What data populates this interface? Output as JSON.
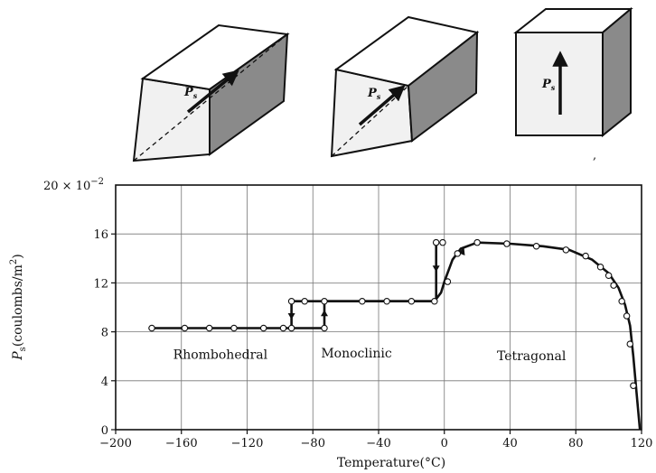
{
  "chart_data": {
    "type": "line",
    "xlabel": "Temperature(°C)",
    "ylabel_main": "P",
    "ylabel_sub": "s",
    "ylabel_rest": "(coulombs/m",
    "ylabel_sup": "2",
    "ylabel_close": ")",
    "y_scale_label": "20 × 10",
    "y_scale_exp": "−2",
    "xlim": [
      -200,
      120
    ],
    "ylim": [
      0,
      20
    ],
    "grid": true,
    "x_ticks": [
      -200,
      -160,
      -120,
      -80,
      -40,
      0,
      40,
      80,
      120
    ],
    "x_tick_labels": [
      "−200",
      "−160",
      "−120",
      "−80",
      "−40",
      "0",
      "40",
      "80",
      "120"
    ],
    "y_ticks": [
      0,
      4,
      8,
      12,
      16
    ],
    "y_tick_labels": [
      "0",
      "4",
      "8",
      "12",
      "16"
    ],
    "phase_labels": [
      {
        "text": "Rhombohedral",
        "x": -165,
        "y": 5.8
      },
      {
        "text": "Monoclinic",
        "x": -75,
        "y": 5.9
      },
      {
        "text": "Tetragonal",
        "x": 32,
        "y": 5.7
      }
    ],
    "curve": [
      [
        -180,
        8.3
      ],
      [
        -73,
        8.3
      ],
      [
        -73,
        10.5
      ],
      [
        -6,
        10.5
      ],
      [
        -2,
        11.2
      ],
      [
        0,
        12.1
      ],
      [
        5,
        13.9
      ],
      [
        10,
        14.8
      ],
      [
        20,
        15.3
      ],
      [
        40,
        15.2
      ],
      [
        60,
        15.0
      ],
      [
        76,
        14.7
      ],
      [
        90,
        13.9
      ],
      [
        100,
        12.8
      ],
      [
        106,
        11.6
      ],
      [
        110,
        10.2
      ],
      [
        113,
        8.5
      ],
      [
        115,
        6.0
      ],
      [
        117,
        3.0
      ],
      [
        119,
        0
      ]
    ],
    "cooling_branch": [
      [
        -5,
        15.3
      ],
      [
        -5,
        10.5
      ],
      [
        -93,
        10.5
      ],
      [
        -93,
        8.3
      ]
    ],
    "points": [
      [
        -178,
        8.3
      ],
      [
        -158,
        8.3
      ],
      [
        -143,
        8.3
      ],
      [
        -128,
        8.3
      ],
      [
        -110,
        8.3
      ],
      [
        -98,
        8.3
      ],
      [
        -93,
        8.3
      ],
      [
        -73,
        8.3
      ],
      [
        -93,
        10.5
      ],
      [
        -85,
        10.5
      ],
      [
        -73,
        10.5
      ],
      [
        -50,
        10.5
      ],
      [
        -35,
        10.5
      ],
      [
        -20,
        10.5
      ],
      [
        -6,
        10.5
      ],
      [
        -5,
        15.3
      ],
      [
        -1,
        15.3
      ],
      [
        2,
        12.1
      ],
      [
        8,
        14.4
      ],
      [
        20,
        15.3
      ],
      [
        38,
        15.2
      ],
      [
        56,
        15.0
      ],
      [
        74,
        14.7
      ],
      [
        86,
        14.2
      ],
      [
        95,
        13.3
      ],
      [
        100,
        12.6
      ],
      [
        103,
        11.8
      ],
      [
        108,
        10.5
      ],
      [
        111,
        9.3
      ],
      [
        113,
        7.0
      ],
      [
        115,
        3.6
      ]
    ]
  },
  "crystals": [
    {
      "name": "rhombohedral",
      "label": "P",
      "sub": "s"
    },
    {
      "name": "monoclinic",
      "label": "P",
      "sub": "s"
    },
    {
      "name": "tetragonal",
      "label": "P",
      "sub": "s"
    }
  ],
  "stray_mark": ","
}
